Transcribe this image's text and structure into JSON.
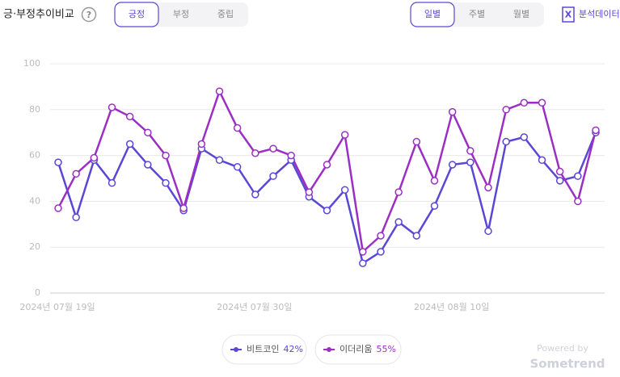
{
  "header": {
    "title": "긍·부정추이비교",
    "help": "?",
    "sentiment_tabs": [
      "긍정",
      "부정",
      "중립"
    ],
    "period_tabs": [
      "일별",
      "주별",
      "월별"
    ],
    "export": "분석데이터"
  },
  "chart_data": {
    "type": "line",
    "categories": [
      "2024년 07월 19일",
      null,
      null,
      null,
      null,
      null,
      null,
      null,
      null,
      null,
      null,
      "2024년 07월 30일",
      null,
      null,
      null,
      null,
      null,
      null,
      null,
      null,
      null,
      null,
      "2024년 08월 10일",
      null,
      null,
      null,
      null,
      null,
      null,
      null,
      null
    ],
    "series": [
      {
        "name": "비트코인",
        "share": "42%",
        "color": "#5a47d6",
        "values": [
          57,
          33,
          58,
          48,
          65,
          56,
          48,
          36,
          63,
          58,
          55,
          43,
          51,
          58,
          42,
          36,
          45,
          13,
          18,
          31,
          25,
          38,
          56,
          57,
          27,
          66,
          68,
          58,
          49,
          51,
          70
        ]
      },
      {
        "name": "이더리움",
        "share": "55%",
        "color": "#9b2fc4",
        "values": [
          37,
          52,
          59,
          81,
          77,
          70,
          60,
          37,
          65,
          88,
          72,
          61,
          63,
          60,
          44,
          56,
          69,
          18,
          25,
          44,
          66,
          49,
          79,
          62,
          46,
          80,
          83,
          83,
          53,
          40,
          71
        ]
      }
    ],
    "ylim": [
      0,
      100
    ],
    "yticks": [
      0,
      20,
      40,
      60,
      80,
      100
    ],
    "grid": true
  },
  "footer": {
    "powered": "Powered by",
    "brand": "Sometrend"
  }
}
